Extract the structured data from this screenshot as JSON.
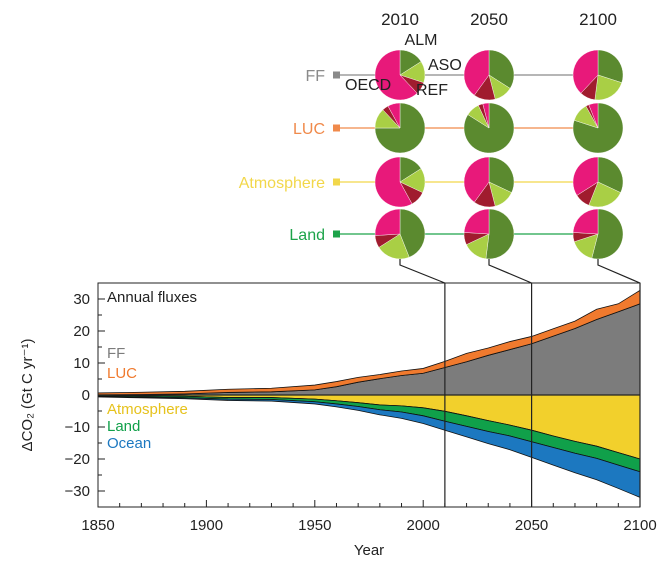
{
  "chart_data": [
    {
      "type": "pie",
      "years": [
        "2010",
        "2050",
        "2100"
      ],
      "year_values": [
        2010,
        2050,
        2100
      ],
      "rows": [
        {
          "label": "FF",
          "color": "#8a8a8a",
          "slices": [
            [
              0.16,
              0.14,
              0.08,
              0.62
            ],
            [
              0.34,
              0.12,
              0.14,
              0.4
            ],
            [
              0.3,
              0.22,
              0.1,
              0.38
            ]
          ]
        },
        {
          "label": "LUC",
          "color": "#f08a4b",
          "slices": [
            [
              0.75,
              0.13,
              0.04,
              0.08
            ],
            [
              0.84,
              0.09,
              0.03,
              0.04
            ],
            [
              0.8,
              0.12,
              0.02,
              0.06
            ]
          ]
        },
        {
          "label": "Atmosphere",
          "color": "#f2d74a",
          "slices": [
            [
              0.16,
              0.16,
              0.1,
              0.58
            ],
            [
              0.32,
              0.14,
              0.14,
              0.4
            ],
            [
              0.32,
              0.24,
              0.1,
              0.34
            ]
          ]
        },
        {
          "label": "Land",
          "color": "#1da34a",
          "slices": [
            [
              0.44,
              0.22,
              0.08,
              0.26
            ],
            [
              0.52,
              0.16,
              0.08,
              0.24
            ],
            [
              0.54,
              0.16,
              0.06,
              0.24
            ]
          ]
        }
      ],
      "regions": [
        "ALM",
        "ASO",
        "REF",
        "OECD"
      ],
      "region_colors": [
        "#5b8a2f",
        "#a9cf45",
        "#a01c2e",
        "#e8197a"
      ],
      "region_labels": [
        {
          "text": "ALM"
        },
        {
          "text": "ASO"
        },
        {
          "text": "REF"
        },
        {
          "text": "OECD"
        }
      ]
    },
    {
      "type": "area",
      "annotation": "Annual fluxes",
      "xlabel": "Year",
      "ylabel": "ΔCO₂ (Gt C yr⁻¹)",
      "xlim": [
        1850,
        2100
      ],
      "ylim": [
        -35,
        35
      ],
      "x_ticks": [
        1850,
        1900,
        1950,
        2000,
        2050,
        2100
      ],
      "y_ticks": [
        30,
        20,
        10,
        0,
        -10,
        -20,
        -30
      ],
      "marker_years": [
        2010,
        2050,
        2100
      ],
      "x": [
        1850,
        1870,
        1890,
        1910,
        1930,
        1950,
        1960,
        1970,
        1980,
        1990,
        2000,
        2010,
        2020,
        2030,
        2040,
        2050,
        2060,
        2070,
        2080,
        2090,
        2100
      ],
      "series": [
        {
          "name": "FF",
          "color": "#7c7c7c",
          "values": [
            0.05,
            0.15,
            0.35,
            0.8,
            1.0,
            1.6,
            2.6,
            4.0,
            5.1,
            6.1,
            6.8,
            8.6,
            10.4,
            12.4,
            14.2,
            16.0,
            18.4,
            20.8,
            23.6,
            26.0,
            28.5
          ]
        },
        {
          "name": "LUC",
          "color": "#f07a2e",
          "values": [
            0.6,
            0.7,
            0.8,
            1.0,
            1.1,
            1.5,
            1.6,
            1.5,
            1.3,
            1.4,
            1.5,
            1.9,
            2.6,
            2.3,
            2.5,
            2.3,
            2.3,
            2.3,
            3.2,
            2.5,
            4.2
          ]
        },
        {
          "name": "Atmosphere",
          "color": "#f2d02c",
          "values": [
            -0.1,
            -0.3,
            -0.4,
            -0.8,
            -0.8,
            -1.3,
            -1.8,
            -2.4,
            -3.1,
            -3.4,
            -4.0,
            -5.1,
            -6.5,
            -8.0,
            -9.4,
            -11.0,
            -12.8,
            -14.5,
            -16.0,
            -18.0,
            -20.0
          ]
        },
        {
          "name": "Land",
          "color": "#10a04a",
          "values": [
            -0.3,
            -0.35,
            -0.45,
            -0.5,
            -0.6,
            -0.8,
            -1.0,
            -1.2,
            -1.5,
            -1.9,
            -2.5,
            -3.1,
            -3.3,
            -3.4,
            -3.4,
            -3.6,
            -3.6,
            -3.7,
            -3.8,
            -3.9,
            -4.0
          ]
        },
        {
          "name": "Ocean",
          "color": "#1c78c0",
          "values": [
            -0.2,
            -0.25,
            -0.3,
            -0.4,
            -0.5,
            -0.7,
            -0.9,
            -1.2,
            -1.6,
            -2.0,
            -2.4,
            -2.8,
            -3.3,
            -3.8,
            -4.3,
            -4.9,
            -5.5,
            -6.1,
            -6.7,
            -7.3,
            -8.0
          ]
        }
      ],
      "legend_positive": [
        "FF",
        "LUC"
      ],
      "legend_negative": [
        "Atmosphere",
        "Land",
        "Ocean"
      ]
    }
  ]
}
